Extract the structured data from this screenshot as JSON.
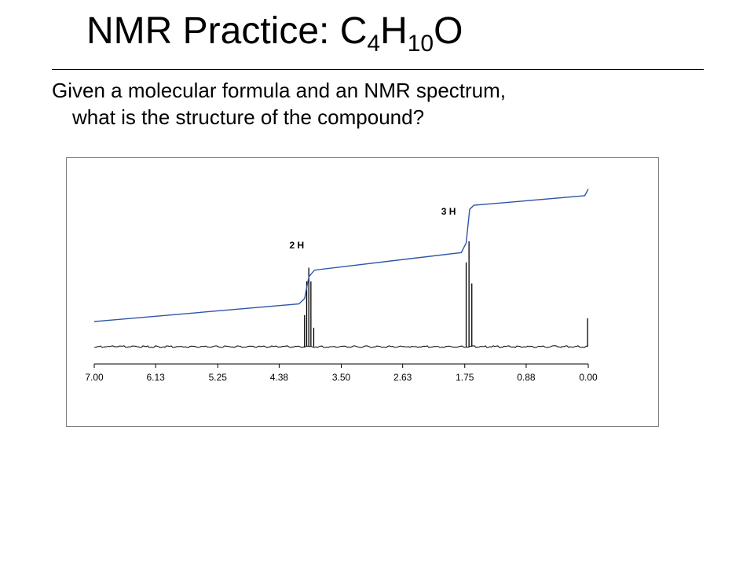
{
  "slide": {
    "title_main": "NMR Practice:  C",
    "title_sub1": "4",
    "title_mid": "H",
    "title_sub2": "10",
    "title_end": "O",
    "body_line1": "Given a molecular formula and an NMR spectrum,",
    "body_line2": "what is the structure of the compound?"
  },
  "chart_data": {
    "type": "line",
    "title": "",
    "xlabel": "",
    "ylabel": "",
    "x_reversed": true,
    "xlim": [
      7.0,
      0.0
    ],
    "x_tick_labels": [
      "7.00",
      "6.13",
      "5.25",
      "4.38",
      "3.50",
      "2.63",
      "1.75",
      "0.88",
      "0.00"
    ],
    "grid": false,
    "colors": {
      "spectrum": "#000000",
      "integral": "#2f55a8"
    },
    "series": [
      {
        "kind": "spectrum",
        "peaks": [
          {
            "shift": 4.02,
            "height": 0.3
          },
          {
            "shift": 3.99,
            "height": 0.62
          },
          {
            "shift": 3.96,
            "height": 0.75
          },
          {
            "shift": 3.93,
            "height": 0.62
          },
          {
            "shift": 3.89,
            "height": 0.18
          },
          {
            "shift": 1.73,
            "height": 0.8
          },
          {
            "shift": 1.69,
            "height": 1.0
          },
          {
            "shift": 1.65,
            "height": 0.6
          },
          {
            "shift": 0.01,
            "height": 0.27
          }
        ]
      },
      {
        "kind": "integral",
        "x": [
          7.0,
          4.1,
          4.02,
          3.96,
          3.88,
          1.8,
          1.73,
          1.68,
          1.62,
          0.05,
          0.01,
          0.0
        ],
        "y": [
          0.0,
          0.13,
          0.17,
          0.33,
          0.38,
          0.51,
          0.58,
          0.83,
          0.86,
          0.93,
          0.97,
          0.98
        ]
      }
    ],
    "annotations": [
      {
        "text": "2 H",
        "shift": 4.13,
        "integral_level": 0.54
      },
      {
        "text": "3 H",
        "shift": 1.98,
        "integral_level": 0.79
      }
    ]
  }
}
